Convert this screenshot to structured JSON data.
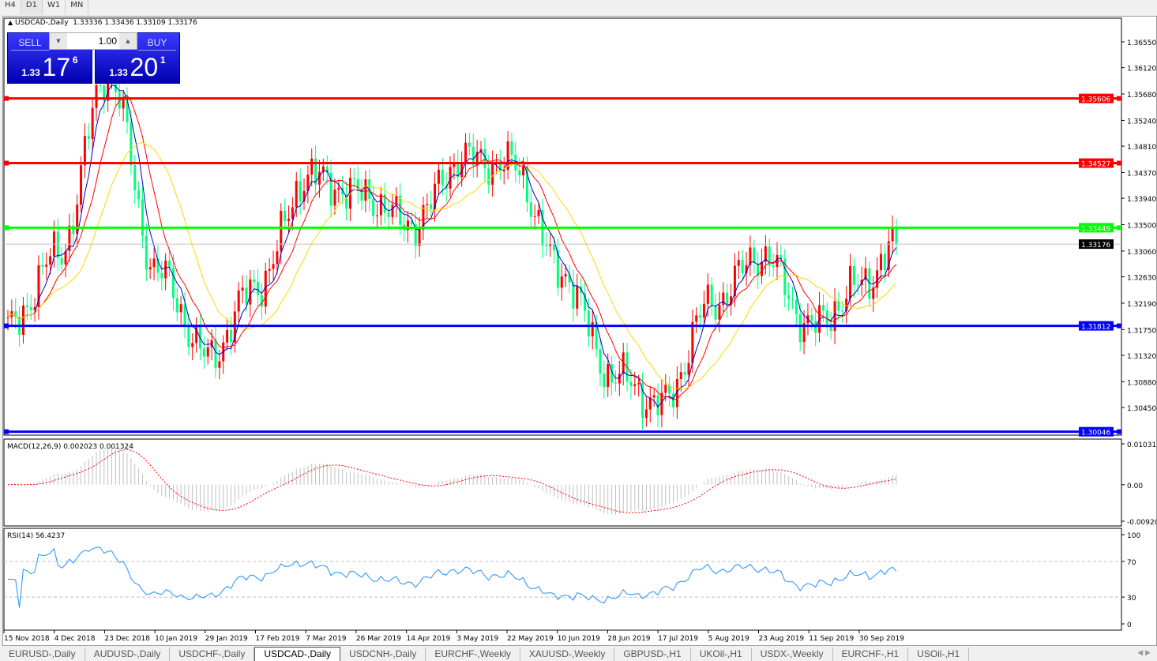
{
  "timeframes": [
    "H4",
    "D1",
    "W1",
    "MN"
  ],
  "active_timeframe": "D1",
  "header": {
    "symbol": "USDCAD-,Daily",
    "ohlc": "1.33336 1.33436 1.33109 1.33176"
  },
  "trade_panel": {
    "sell_label": "SELL",
    "buy_label": "BUY",
    "lot": "1.00",
    "sell_price": {
      "small": "1.33",
      "big": "17",
      "pip": "6"
    },
    "buy_price": {
      "small": "1.33",
      "big": "20",
      "pip": "1"
    }
  },
  "price_axis": {
    "ticks": [
      "1.36550",
      "1.36120",
      "1.35680",
      "1.35240",
      "1.34810",
      "1.34370",
      "1.33940",
      "1.33500",
      "1.33060",
      "1.32630",
      "1.32190",
      "1.31750",
      "1.31320",
      "1.30880",
      "1.30450"
    ],
    "current": "1.33176"
  },
  "hlines": [
    {
      "price": "1.35606",
      "color": "#ff0000"
    },
    {
      "price": "1.34527",
      "color": "#ff0000"
    },
    {
      "price": "1.33449",
      "color": "#00ff00"
    },
    {
      "price": "1.31812",
      "color": "#0000ff"
    },
    {
      "price": "1.30046",
      "color": "#0000ff"
    }
  ],
  "macd": {
    "label": "MACD(12,26,9) 0.002023 0.001324",
    "ticks": [
      "0.010311",
      "0.00",
      "-0.009203"
    ]
  },
  "rsi": {
    "label": "RSI(14) 56.4237",
    "ticks": [
      "100",
      "70",
      "30",
      "0"
    ]
  },
  "dates": [
    "15 Nov 2018",
    "4 Dec 2018",
    "23 Dec 2018",
    "10 Jan 2019",
    "29 Jan 2019",
    "17 Feb 2019",
    "7 Mar 2019",
    "26 Mar 2019",
    "14 Apr 2019",
    "3 May 2019",
    "22 May 2019",
    "10 Jun 2019",
    "28 Jun 2019",
    "17 Jul 2019",
    "5 Aug 2019",
    "23 Aug 2019",
    "11 Sep 2019",
    "30 Sep 2019"
  ],
  "chart_data": {
    "type": "candlestick",
    "symbol": "USDCAD",
    "timeframe": "Daily",
    "approx_closes_at_date_labels": [
      1.3175,
      1.33,
      1.36,
      1.327,
      1.313,
      1.325,
      1.343,
      1.34,
      1.335,
      1.346,
      1.345,
      1.327,
      1.31,
      1.305,
      1.322,
      1.33,
      1.318,
      1.325
    ],
    "last_close": 1.33176,
    "ylim": [
      1.3,
      1.368
    ],
    "indicators": [
      "MA blue",
      "MA red",
      "MA yellow",
      "MACD(12,26,9)",
      "RSI(14)"
    ],
    "colors": {
      "bull": "#ff0000",
      "bear": "#00ff7f",
      "ma_fast": "#0000cc",
      "ma_mid": "#ff0000",
      "ma_slow": "#ffd700"
    }
  },
  "tabs": [
    "EURUSD-,Daily",
    "AUDUSD-,Daily",
    "USDCHF-,Daily",
    "USDCAD-,Daily",
    "USDCNH-,Daily",
    "EURCHF-,Weekly",
    "XAUUSD-,Weekly",
    "GBPUSD-,H1",
    "UKOil-,H1",
    "USDX-,Weekly",
    "EURCHF-,H1",
    "USOil-,H1"
  ],
  "active_tab": "USDCAD-,Daily"
}
